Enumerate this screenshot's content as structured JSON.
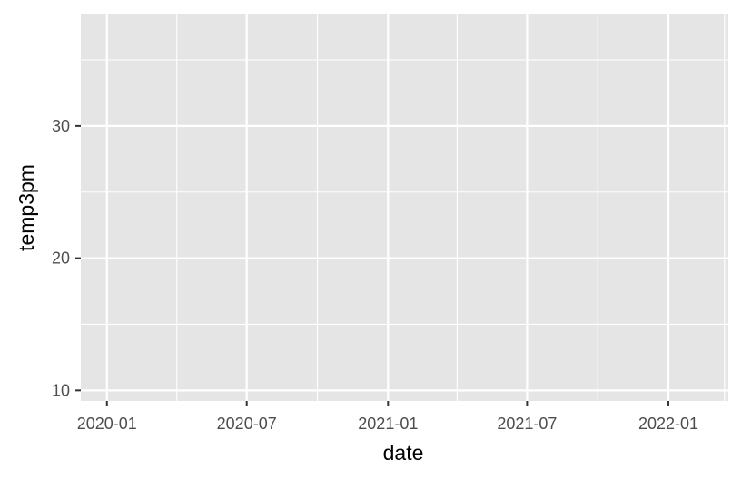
{
  "chart_data": {
    "type": "scatter",
    "title": "",
    "xlabel": "date",
    "ylabel": "temp3pm",
    "x_type": "date",
    "xlim": [
      "2019-11-28",
      "2022-03-20"
    ],
    "ylim": [
      9.2,
      38.5
    ],
    "x_ticks": [
      {
        "value": "2020-01-01",
        "label": "2020-01"
      },
      {
        "value": "2020-07-01",
        "label": "2020-07"
      },
      {
        "value": "2021-01-01",
        "label": "2021-01"
      },
      {
        "value": "2021-07-01",
        "label": "2021-07"
      },
      {
        "value": "2022-01-01",
        "label": "2022-01"
      }
    ],
    "x_minor_ticks": [
      "2020-04-01",
      "2020-10-01",
      "2021-04-01",
      "2021-10-01",
      "2022-03-15"
    ],
    "y_ticks": [
      {
        "value": 10,
        "label": "10"
      },
      {
        "value": 20,
        "label": "20"
      },
      {
        "value": 30,
        "label": "30"
      }
    ],
    "y_minor_ticks": [
      15,
      25,
      35
    ],
    "series": [],
    "grid": true,
    "legend": "none",
    "colors": {
      "panel_background": "#e5e5e5",
      "grid_line": "#ffffff",
      "tick_mark": "#333333",
      "tick_label": "#4d4d4d",
      "axis_title": "#000000"
    }
  }
}
